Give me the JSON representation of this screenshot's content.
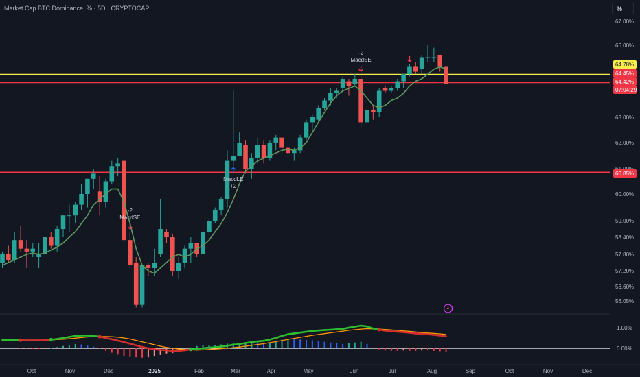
{
  "header": {
    "title": "Market Cap BTC Dominance, % · 5D · CRYPTOCAP",
    "unit_button": "%"
  },
  "chart_data": {
    "type": "candlestick",
    "symbol": "Market Cap BTC Dominance",
    "interval": "5D",
    "exchange": "CRYPTOCAP",
    "y_tick_labels": [
      "67.00%",
      "66.00%",
      "63.00%",
      "62.00%",
      "61.00%",
      "60.00%",
      "59.00%",
      "58.40%",
      "57.80%",
      "57.20%",
      "56.60%",
      "56.05%"
    ],
    "x_tick_labels": [
      "Oct",
      "Nov",
      "Dec",
      "2025",
      "Feb",
      "Mar",
      "Apr",
      "May",
      "Jun",
      "Jul",
      "Aug",
      "Sep",
      "Oct",
      "Nov",
      "Dec"
    ],
    "osc_tick_labels": [
      "1.00%",
      "0.00%"
    ],
    "price_labels": [
      {
        "value": "64.78%",
        "color": "#f7ec4b"
      },
      {
        "value": "64.45%",
        "color": "#f23645"
      },
      {
        "value": "64.42%",
        "color": "#f23645"
      },
      {
        "value": "07:04:29",
        "color": "#f23645"
      },
      {
        "value": "60.85%",
        "color": "#f23645"
      }
    ],
    "horizontal_lines": [
      {
        "value": 64.78,
        "color": "#f7ec4b"
      },
      {
        "value": 64.45,
        "color": "#f23645"
      },
      {
        "value": 60.85,
        "color": "#f23645"
      }
    ],
    "candles": [
      [
        57.5,
        57.9,
        57.3,
        57.8
      ],
      [
        57.8,
        58.1,
        57.5,
        57.6
      ],
      [
        57.6,
        58.6,
        57.5,
        58.3
      ],
      [
        58.3,
        58.8,
        57.9,
        58.0
      ],
      [
        58.0,
        58.3,
        57.3,
        57.9
      ],
      [
        57.9,
        58.2,
        57.7,
        58.0
      ],
      [
        57.7,
        58.2,
        57.3,
        57.8
      ],
      [
        57.8,
        58.4,
        57.7,
        58.4
      ],
      [
        58.4,
        58.6,
        58.0,
        58.1
      ],
      [
        58.1,
        58.8,
        57.9,
        58.7
      ],
      [
        58.7,
        59.2,
        58.4,
        59.2
      ],
      [
        59.2,
        59.6,
        58.6,
        59.2
      ],
      [
        59.2,
        59.7,
        58.9,
        59.6
      ],
      [
        59.6,
        60.4,
        59.4,
        60.0
      ],
      [
        60.0,
        60.5,
        59.5,
        60.6
      ],
      [
        60.6,
        61.0,
        60.2,
        60.8
      ],
      [
        60.1,
        60.7,
        59.2,
        59.7
      ],
      [
        59.7,
        60.6,
        59.5,
        60.5
      ],
      [
        60.5,
        61.3,
        60.4,
        61.1
      ],
      [
        61.1,
        61.4,
        60.7,
        61.2
      ],
      [
        61.3,
        61.4,
        58.2,
        58.3
      ],
      [
        58.3,
        58.6,
        57.3,
        57.4
      ],
      [
        57.5,
        57.7,
        55.8,
        55.9
      ],
      [
        55.9,
        57.4,
        55.8,
        57.4
      ],
      [
        57.4,
        57.5,
        57.0,
        57.3
      ],
      [
        57.3,
        58.0,
        57.0,
        57.5
      ],
      [
        57.8,
        59.8,
        57.7,
        58.7
      ],
      [
        58.6,
        58.7,
        58.2,
        58.4
      ],
      [
        58.4,
        58.5,
        57.0,
        57.2
      ],
      [
        57.2,
        57.7,
        56.9,
        57.5
      ],
      [
        57.5,
        58.1,
        57.3,
        58.0
      ],
      [
        58.0,
        58.4,
        57.5,
        58.2
      ],
      [
        58.2,
        58.2,
        57.7,
        57.8
      ],
      [
        57.8,
        58.7,
        57.7,
        58.6
      ],
      [
        58.6,
        59.1,
        58.5,
        59.0
      ],
      [
        59.0,
        59.5,
        58.9,
        59.4
      ],
      [
        59.4,
        59.9,
        59.2,
        59.8
      ],
      [
        59.8,
        61.7,
        59.5,
        61.3
      ],
      [
        61.3,
        64.1,
        61.1,
        61.5
      ],
      [
        61.5,
        62.4,
        61.5,
        62.0
      ],
      [
        61.9,
        62.1,
        60.8,
        61.0
      ],
      [
        61.0,
        61.6,
        60.6,
        61.4
      ],
      [
        61.4,
        62.2,
        61.2,
        61.9
      ],
      [
        61.9,
        62.1,
        61.2,
        61.4
      ],
      [
        61.4,
        62.1,
        61.3,
        62.0
      ],
      [
        62.0,
        62.3,
        61.7,
        62.2
      ],
      [
        62.2,
        62.2,
        61.6,
        61.8
      ],
      [
        61.8,
        61.9,
        61.4,
        61.6
      ],
      [
        61.6,
        61.8,
        61.3,
        61.7
      ],
      [
        61.7,
        62.3,
        61.6,
        62.2
      ],
      [
        62.2,
        62.9,
        62.1,
        62.8
      ],
      [
        62.8,
        63.1,
        62.5,
        63.0
      ],
      [
        62.9,
        63.5,
        62.8,
        63.4
      ],
      [
        63.4,
        63.8,
        63.3,
        63.7
      ],
      [
        63.7,
        64.2,
        63.5,
        64.0
      ],
      [
        64.0,
        64.2,
        63.8,
        64.1
      ],
      [
        64.2,
        64.7,
        64.0,
        64.6
      ],
      [
        64.5,
        64.6,
        63.9,
        64.3
      ],
      [
        64.4,
        64.8,
        64.3,
        64.6
      ],
      [
        64.6,
        64.8,
        62.6,
        62.8
      ],
      [
        62.8,
        63.5,
        62.0,
        63.3
      ],
      [
        63.3,
        63.5,
        62.9,
        63.2
      ],
      [
        63.2,
        64.2,
        63.0,
        64.1
      ],
      [
        64.2,
        64.3,
        64.0,
        64.1
      ],
      [
        64.1,
        64.3,
        64.0,
        64.2
      ],
      [
        64.2,
        64.6,
        64.1,
        64.5
      ],
      [
        64.5,
        64.8,
        64.2,
        64.8
      ],
      [
        64.8,
        65.2,
        64.7,
        65.1
      ],
      [
        65.1,
        65.3,
        64.8,
        64.9
      ],
      [
        65.0,
        65.6,
        64.8,
        65.5
      ],
      [
        65.5,
        66.0,
        65.3,
        65.5
      ],
      [
        65.5,
        65.9,
        65.3,
        65.5
      ],
      [
        65.6,
        65.6,
        64.9,
        65.1
      ],
      [
        65.1,
        65.2,
        64.3,
        64.4
      ]
    ],
    "sma": [
      57.4,
      57.5,
      57.6,
      57.7,
      57.8,
      57.85,
      57.8,
      57.85,
      57.95,
      58.05,
      58.2,
      58.4,
      58.6,
      58.9,
      59.2,
      59.6,
      59.8,
      60.0,
      60.2,
      60.2,
      59.7,
      58.9,
      58.0,
      57.4,
      57.2,
      57.1,
      57.3,
      57.5,
      57.7,
      57.8,
      57.7,
      57.8,
      58.0,
      58.1,
      58.3,
      58.6,
      58.9,
      59.3,
      59.8,
      60.4,
      60.9,
      61.1,
      61.3,
      61.4,
      61.5,
      61.6,
      61.7,
      61.75,
      61.7,
      61.8,
      62.0,
      62.4,
      62.8,
      63.2,
      63.6,
      63.9,
      64.1,
      64.2,
      64.3,
      64.1,
      63.8,
      63.5,
      63.4,
      63.5,
      63.7,
      63.8,
      64.0,
      64.3,
      64.5,
      64.6,
      64.8,
      65.0,
      65.1,
      65.0
    ],
    "signals": [
      {
        "name": "MacdSE",
        "qty": "-2",
        "bar": 21,
        "direction": "short",
        "label_above": "-2",
        "label_below": "MacdSE"
      },
      {
        "name": "MacdLE",
        "qty": "+2",
        "bar": 38,
        "direction": "long",
        "label_above": "MacdLE",
        "label_below": "+2"
      },
      {
        "name": "MacdSE",
        "qty": "-2",
        "bar": 59,
        "direction": "short",
        "label_above": "-2",
        "label_below": "MacdSE"
      },
      {
        "name": "MacdSE",
        "qty": "",
        "bar": 67,
        "direction": "short",
        "label_above": "",
        "label_below": ""
      }
    ],
    "macd": {
      "macd_line": [
        0.4,
        0.4,
        0.4,
        0.39,
        0.38,
        0.38,
        0.38,
        0.39,
        0.42,
        0.45,
        0.5,
        0.55,
        0.6,
        0.62,
        0.62,
        0.6,
        0.56,
        0.5,
        0.44,
        0.37,
        0.3,
        0.22,
        0.14,
        0.06,
        0.0,
        -0.05,
        -0.08,
        -0.1,
        -0.13,
        -0.13,
        -0.1,
        -0.06,
        -0.03,
        0.0,
        0.03,
        0.05,
        0.08,
        0.12,
        0.17,
        0.2,
        0.25,
        0.3,
        0.33,
        0.36,
        0.42,
        0.5,
        0.6,
        0.68,
        0.72,
        0.76,
        0.8,
        0.84,
        0.86,
        0.88,
        0.9,
        0.92,
        0.94,
        1.0,
        1.05,
        1.1,
        1.06,
        0.96,
        0.9,
        0.85,
        0.82,
        0.8,
        0.78,
        0.75,
        0.72,
        0.7,
        0.68,
        0.65,
        0.62,
        0.58
      ],
      "signal_line": [
        0.4,
        0.4,
        0.4,
        0.4,
        0.4,
        0.4,
        0.4,
        0.4,
        0.41,
        0.42,
        0.44,
        0.46,
        0.49,
        0.52,
        0.55,
        0.56,
        0.57,
        0.57,
        0.56,
        0.54,
        0.5,
        0.45,
        0.38,
        0.31,
        0.24,
        0.17,
        0.1,
        0.04,
        0.0,
        -0.04,
        -0.06,
        -0.08,
        -0.09,
        -0.08,
        -0.06,
        -0.04,
        -0.02,
        0.0,
        0.03,
        0.06,
        0.1,
        0.14,
        0.18,
        0.22,
        0.27,
        0.32,
        0.37,
        0.43,
        0.48,
        0.53,
        0.58,
        0.63,
        0.67,
        0.71,
        0.75,
        0.79,
        0.83,
        0.87,
        0.9,
        0.93,
        0.95,
        0.94,
        0.93,
        0.91,
        0.89,
        0.87,
        0.84,
        0.82,
        0.79,
        0.76,
        0.74,
        0.72,
        0.7,
        0.67
      ],
      "histogram": [
        0.0,
        0.0,
        0.0,
        -0.01,
        -0.02,
        -0.02,
        -0.02,
        -0.01,
        0.01,
        0.03,
        0.06,
        0.09,
        0.11,
        0.1,
        0.07,
        0.04,
        -0.01,
        -0.07,
        -0.12,
        -0.17,
        -0.2,
        -0.23,
        -0.24,
        -0.25,
        -0.24,
        -0.22,
        -0.18,
        -0.14,
        -0.13,
        -0.09,
        -0.04,
        0.02,
        0.06,
        0.08,
        0.09,
        0.09,
        0.1,
        0.12,
        0.14,
        0.14,
        0.15,
        0.16,
        0.15,
        0.14,
        0.15,
        0.18,
        0.23,
        0.25,
        0.24,
        0.23,
        0.22,
        0.21,
        0.19,
        0.17,
        0.15,
        0.13,
        0.11,
        0.13,
        0.15,
        0.17,
        0.11,
        0.02,
        -0.03,
        -0.06,
        -0.07,
        -0.07,
        -0.06,
        -0.07,
        -0.07,
        -0.06,
        -0.06,
        -0.07,
        -0.08,
        -0.09
      ]
    },
    "annotation_icon": "lightning-bolt-icon"
  }
}
